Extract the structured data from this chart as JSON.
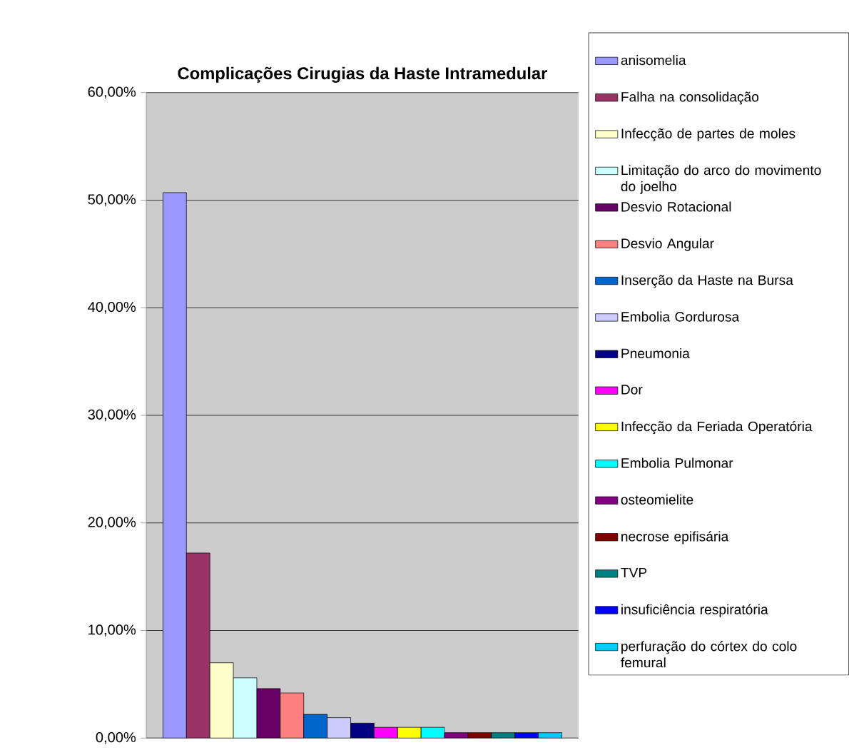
{
  "chart_data": {
    "type": "bar",
    "title": "**Complicações Cirugias da Haste Intramedular**",
    "categories": [
      null
    ],
    "series": [
      {
        "name": "anisomelia",
        "color": "#9999ff",
        "values": [
          50.7
        ]
      },
      {
        "name": "Falha na consolidação",
        "color": "#993366",
        "values": [
          17.2
        ]
      },
      {
        "name": "Infecção de partes de moles",
        "color": "#ffffcc",
        "values": [
          7.0
        ]
      },
      {
        "name": "Limitação do arco do movimento do joelho",
        "color": "#ccffff",
        "values": [
          5.6
        ]
      },
      {
        "name": "Desvio Rotacional",
        "color": "#660066",
        "values": [
          4.6
        ]
      },
      {
        "name": "Desvio Angular",
        "color": "#ff8080",
        "values": [
          4.2
        ]
      },
      {
        "name": "Inserção da Haste na Bursa",
        "color": "#0066cc",
        "values": [
          2.2
        ]
      },
      {
        "name": "Embolia Gordurosa",
        "color": "#ccccff",
        "values": [
          1.9
        ]
      },
      {
        "name": "Pneumonia",
        "color": "#000080",
        "values": [
          1.4
        ]
      },
      {
        "name": "Dor",
        "color": "#ff00ff",
        "values": [
          1.0
        ]
      },
      {
        "name": "Infecção da Feriada Operatória",
        "color": "#ffff00",
        "values": [
          1.0
        ]
      },
      {
        "name": "Embolia Pulmonar",
        "color": "#00ffff",
        "values": [
          1.0
        ]
      },
      {
        "name": "osteomielite",
        "color": "#800080",
        "values": [
          0.5
        ]
      },
      {
        "name": "necrose epifisária",
        "color": "#800000",
        "values": [
          0.5
        ]
      },
      {
        "name": "TVP",
        "color": "#008080",
        "values": [
          0.5
        ]
      },
      {
        "name": "insuficiência respiratória",
        "color": "#0000ff",
        "values": [
          0.5
        ]
      },
      {
        "name": "perfuração do córtex do colo femural",
        "color": "#00ccff",
        "values": [
          0.5
        ]
      }
    ],
    "ylim": [
      0,
      60
    ],
    "yticks": [
      {
        "value": 0,
        "label": "0,00%"
      },
      {
        "value": 10,
        "label": "10,00%"
      },
      {
        "value": 20,
        "label": "20,00%"
      },
      {
        "value": 30,
        "label": "30,00%"
      },
      {
        "value": 40,
        "label": "40,00%"
      },
      {
        "value": 50,
        "label": "50,00%"
      },
      {
        "value": 60,
        "label": "60,00%"
      }
    ],
    "grid": "y",
    "legend": "right"
  }
}
